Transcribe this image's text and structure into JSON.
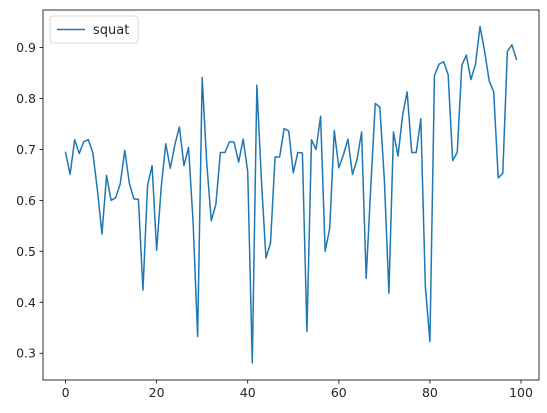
{
  "chart_data": {
    "type": "line",
    "title": "",
    "xlabel": "",
    "ylabel": "",
    "xlim": [
      -4.95,
      103.95
    ],
    "ylim": [
      0.2475,
      0.9735
    ],
    "xticks": [
      0,
      20,
      40,
      60,
      80,
      100
    ],
    "yticks": [
      0.3,
      0.4,
      0.5,
      0.6,
      0.7,
      0.8,
      0.9
    ],
    "xtick_labels": [
      "0",
      "20",
      "40",
      "60",
      "80",
      "100"
    ],
    "ytick_labels": [
      "0.3",
      "0.4",
      "0.5",
      "0.6",
      "0.7",
      "0.8",
      "0.9"
    ],
    "grid": false,
    "legend_position": "upper-left",
    "colors": {
      "series": "#1f77b4",
      "axis": "#000000",
      "text": "#262626"
    },
    "series": [
      {
        "name": "squat",
        "x": [
          0,
          1,
          2,
          3,
          4,
          5,
          6,
          7,
          8,
          9,
          10,
          11,
          12,
          13,
          14,
          15,
          16,
          17,
          18,
          19,
          20,
          21,
          22,
          23,
          24,
          25,
          26,
          27,
          28,
          29,
          30,
          31,
          32,
          33,
          34,
          35,
          36,
          37,
          38,
          39,
          40,
          41,
          42,
          43,
          44,
          45,
          46,
          47,
          48,
          49,
          50,
          51,
          52,
          53,
          54,
          55,
          56,
          57,
          58,
          59,
          60,
          61,
          62,
          63,
          64,
          65,
          66,
          67,
          68,
          69,
          70,
          71,
          72,
          73,
          74,
          75,
          76,
          77,
          78,
          79,
          80,
          81,
          82,
          83,
          84,
          85,
          86,
          87,
          88,
          89,
          90,
          91,
          92,
          93,
          94,
          95,
          96,
          97,
          98,
          99
        ],
        "values": [
          0.694,
          0.651,
          0.719,
          0.692,
          0.715,
          0.719,
          0.693,
          0.62,
          0.534,
          0.649,
          0.6,
          0.605,
          0.632,
          0.698,
          0.634,
          0.603,
          0.602,
          0.424,
          0.629,
          0.668,
          0.502,
          0.625,
          0.711,
          0.663,
          0.709,
          0.744,
          0.668,
          0.704,
          0.558,
          0.333,
          0.841,
          0.673,
          0.56,
          0.592,
          0.694,
          0.694,
          0.715,
          0.714,
          0.675,
          0.72,
          0.656,
          0.281,
          0.826,
          0.64,
          0.487,
          0.516,
          0.685,
          0.685,
          0.741,
          0.736,
          0.654,
          0.694,
          0.693,
          0.343,
          0.719,
          0.7,
          0.765,
          0.5,
          0.545,
          0.737,
          0.664,
          0.689,
          0.72,
          0.651,
          0.68,
          0.734,
          0.447,
          0.624,
          0.79,
          0.783,
          0.64,
          0.418,
          0.734,
          0.687,
          0.767,
          0.813,
          0.694,
          0.694,
          0.76,
          0.43,
          0.323,
          0.845,
          0.867,
          0.872,
          0.847,
          0.678,
          0.694,
          0.865,
          0.885,
          0.837,
          0.867,
          0.941,
          0.893,
          0.835,
          0.813,
          0.644,
          0.653,
          0.892,
          0.905,
          0.877
        ]
      }
    ]
  }
}
